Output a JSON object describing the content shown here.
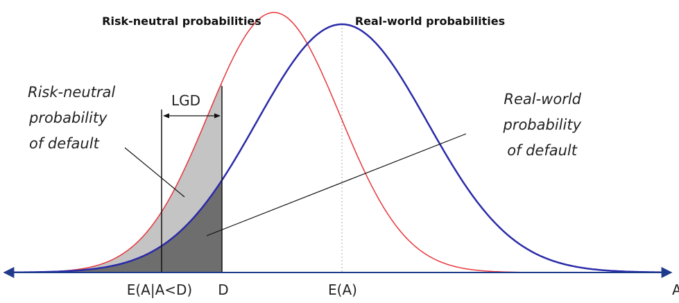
{
  "curves": {
    "risk_neutral": "Risk-neutral probabilities",
    "real_world": "Real-world probabilities"
  },
  "annotations": {
    "risk_neutral_pd": [
      "Risk-neutral",
      "probability",
      "of default"
    ],
    "real_world_pd": [
      "Real-world",
      "probability",
      "of default"
    ],
    "lgd": "LGD"
  },
  "axis_labels": {
    "conditional_mean": "E(A|A<D)",
    "default_point": "D",
    "mean": "E(A)",
    "axis": "A"
  }
}
